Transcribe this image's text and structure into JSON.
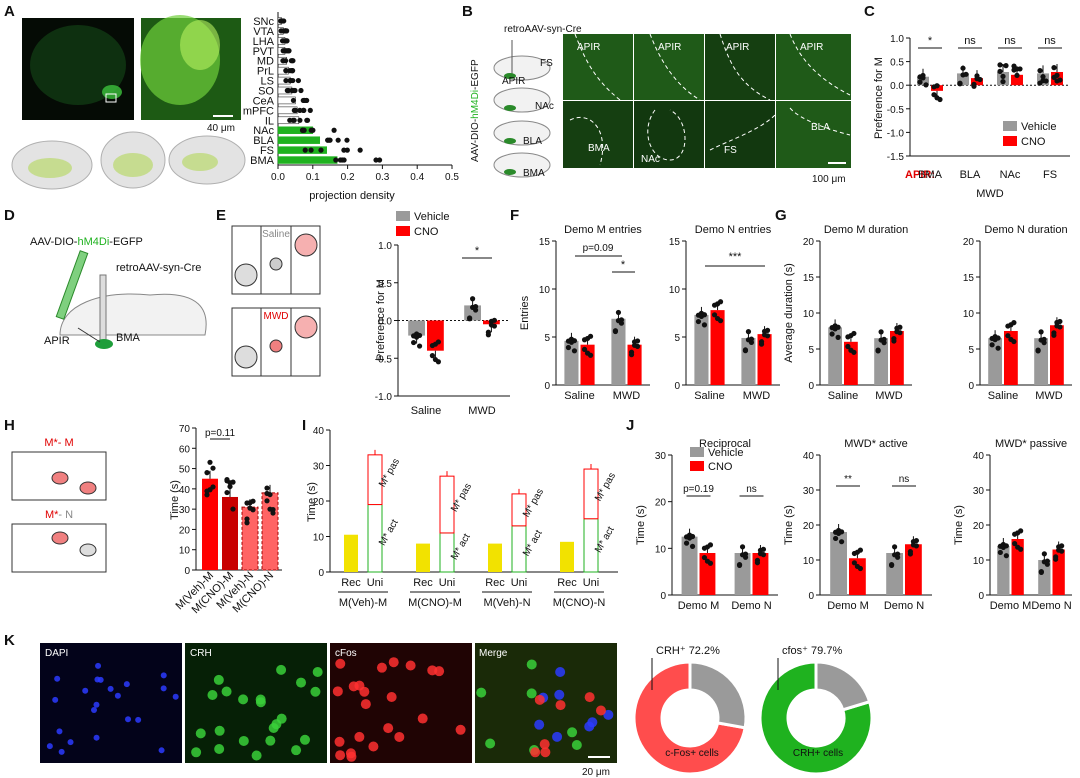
{
  "panel_labels": [
    "A",
    "B",
    "C",
    "D",
    "E",
    "F",
    "G",
    "H",
    "I",
    "J",
    "K"
  ],
  "colors": {
    "vehicle": "#9a9a9a",
    "cno": "#ff0000",
    "green": "#1fb21f",
    "yellow": "#f2e200",
    "dark_green": "#0d2a0d"
  },
  "A": {
    "scale_label": "40 μm",
    "chart_data": {
      "type": "bar",
      "orientation": "horizontal",
      "categories": [
        "SNc",
        "VTA",
        "LHA",
        "PVT",
        "MD",
        "PrL",
        "LS",
        "SO",
        "CeA",
        "mPFC",
        "IL",
        "NAc",
        "BLA",
        "FS",
        "BMA"
      ],
      "values": [
        0.01,
        0.015,
        0.02,
        0.02,
        0.025,
        0.03,
        0.035,
        0.04,
        0.05,
        0.055,
        0.06,
        0.1,
        0.12,
        0.14,
        0.17
      ],
      "xlabel": "projection density",
      "xticks": [
        "0.0",
        "0.1",
        "0.2",
        "0.3",
        "0.4",
        "0.5"
      ],
      "xlim": [
        0,
        0.5
      ]
    }
  },
  "B": {
    "virus_top": "retroAAV-syn-Cre",
    "virus_side_pre": "AAV-DIO-",
    "virus_side_mid": "hM4Di",
    "virus_side_post": "-EGFP",
    "schematic_labels": [
      "FS",
      "APIR",
      "NAc",
      "BLA",
      "BMA"
    ],
    "image_labels_top": [
      "APIR",
      "APIR",
      "APIR",
      "APIR"
    ],
    "image_labels_bottom": [
      "BMA",
      "NAc",
      "FS",
      "BLA"
    ],
    "scale_label": "100 μm"
  },
  "C": {
    "chart_data": {
      "type": "bar",
      "categories": [
        "BMA",
        "BLA",
        "NAc",
        "FS"
      ],
      "series": [
        {
          "name": "Vehicle",
          "values": [
            0.18,
            0.25,
            0.28,
            0.25
          ]
        },
        {
          "name": "CNO",
          "values": [
            -0.12,
            0.15,
            0.22,
            0.28
          ]
        }
      ],
      "ylabel": "Preference for M",
      "ylim": [
        -1.5,
        1.0
      ],
      "yticks": [
        "1.0",
        "0.5",
        "0.0",
        "-0.5",
        "-1.0",
        "-1.5"
      ],
      "significance": [
        "*",
        "ns",
        "ns",
        "ns"
      ],
      "xprefix": "APIR:",
      "xgroup": "MWD"
    }
  },
  "D": {
    "virus1_pre": "AAV-DIO-",
    "virus1_mid": "hM4Di",
    "virus1_post": "-EGFP",
    "virus2": "retroAAV-syn-Cre",
    "region1": "APIR",
    "region2": "BMA"
  },
  "E": {
    "box_label_1": "Saline",
    "box_label_2": "MWD",
    "legend": [
      "Vehicle",
      "CNO"
    ],
    "chart_data": {
      "type": "bar",
      "categories": [
        "Saline",
        "MWD"
      ],
      "series": [
        {
          "name": "Vehicle",
          "values": [
            -0.2,
            0.2
          ]
        },
        {
          "name": "CNO",
          "values": [
            -0.4,
            -0.05
          ]
        }
      ],
      "ylabel": "Preference for M",
      "ylim": [
        -1.0,
        1.0
      ],
      "yticks": [
        "1.0",
        "0.5",
        "0.0",
        "-0.5",
        "-1.0"
      ],
      "significance": "*"
    }
  },
  "F": {
    "chart_data": [
      {
        "type": "bar",
        "title": "Demo M entries",
        "categories": [
          "Saline",
          "MWD"
        ],
        "series": [
          {
            "name": "Vehicle",
            "values": [
              4.6,
              6.9
            ]
          },
          {
            "name": "CNO",
            "values": [
              4.2,
              4.2
            ]
          }
        ],
        "ylabel": "Entries",
        "ylim": [
          0,
          15
        ],
        "yticks": [
          "15",
          "10",
          "5",
          "0"
        ],
        "annotations": [
          "p=0.09",
          "*"
        ]
      },
      {
        "type": "bar",
        "title": "Demo N entries",
        "categories": [
          "Saline",
          "MWD"
        ],
        "series": [
          {
            "name": "Vehicle",
            "values": [
              7.3,
              4.9
            ]
          },
          {
            "name": "CNO",
            "values": [
              7.8,
              5.3
            ]
          }
        ],
        "ylim": [
          0,
          15
        ],
        "yticks": [
          "15",
          "10",
          "5",
          "0"
        ],
        "annotations": [
          "***"
        ]
      }
    ]
  },
  "G": {
    "chart_data": [
      {
        "type": "bar",
        "title": "Demo M duration",
        "categories": [
          "Saline",
          "MWD"
        ],
        "series": [
          {
            "name": "Vehicle",
            "values": [
              8.0,
              6.5
            ]
          },
          {
            "name": "CNO",
            "values": [
              6.0,
              7.5
            ]
          }
        ],
        "ylabel": "Average duration (s)",
        "ylim": [
          0,
          20
        ],
        "yticks": [
          "20",
          "15",
          "10",
          "5",
          "0"
        ]
      },
      {
        "type": "bar",
        "title": "Demo N duration",
        "categories": [
          "Saline",
          "MWD"
        ],
        "series": [
          {
            "name": "Vehicle",
            "values": [
              6.5,
              6.5
            ]
          },
          {
            "name": "CNO",
            "values": [
              7.5,
              8.3
            ]
          }
        ],
        "ylim": [
          0,
          20
        ],
        "yticks": [
          "20",
          "15",
          "10",
          "5",
          "0"
        ]
      }
    ]
  },
  "H": {
    "box1_pre": "M*",
    "box1_post": "- M",
    "box2_pre": "M*",
    "box2_post": "- N",
    "chart_data": {
      "type": "bar",
      "categories": [
        "M(Veh)-M",
        "M(CNO)-M",
        "M(Veh)-N",
        "M(CNO)-N"
      ],
      "values": [
        45,
        36,
        31,
        38
      ],
      "ylabel": "Time (s)",
      "ylim": [
        0,
        70
      ],
      "yticks": [
        "70",
        "60",
        "50",
        "40",
        "30",
        "20",
        "10",
        "0"
      ],
      "annotation": "p=0.11"
    }
  },
  "I": {
    "chart_data": {
      "type": "bar",
      "groups": [
        "M(Veh)-M",
        "M(CNO)-M",
        "M(Veh)-N",
        "M(CNO)-N"
      ],
      "subcategories": [
        "Rec",
        "Uni"
      ],
      "rec_values": [
        10.5,
        8,
        8,
        8.5
      ],
      "uni_act_values": [
        19,
        11,
        13,
        15
      ],
      "uni_total_values": [
        33,
        27,
        22,
        29
      ],
      "segment_labels": [
        "M* act",
        "M* pas"
      ],
      "ylabel": "Time (s)",
      "ylim": [
        0,
        40
      ],
      "yticks": [
        "40",
        "30",
        "20",
        "10",
        "0"
      ]
    }
  },
  "J": {
    "legend": [
      "Vehicle",
      "CNO"
    ],
    "chart_data": [
      {
        "type": "bar",
        "title": "Reciprocal",
        "categories": [
          "Demo M",
          "Demo N"
        ],
        "series": [
          {
            "name": "Vehicle",
            "values": [
              12.5,
              9
            ]
          },
          {
            "name": "CNO",
            "values": [
              9,
              9
            ]
          }
        ],
        "ylabel": "Time (s)",
        "ylim": [
          0,
          30
        ],
        "yticks": [
          "30",
          "20",
          "10",
          "0"
        ],
        "significance": [
          "p=0.19",
          "ns"
        ]
      },
      {
        "type": "bar",
        "title": "MWD* active",
        "categories": [
          "Demo M",
          "Demo N"
        ],
        "series": [
          {
            "name": "Vehicle",
            "values": [
              18,
              12
            ]
          },
          {
            "name": "CNO",
            "values": [
              10.5,
              14.5
            ]
          }
        ],
        "ylabel": "Time (s)",
        "ylim": [
          0,
          40
        ],
        "yticks": [
          "40",
          "30",
          "20",
          "10",
          "0"
        ],
        "significance": [
          "**",
          "ns"
        ]
      },
      {
        "type": "bar",
        "title": "MWD* passive",
        "categories": [
          "Demo M",
          "Demo N"
        ],
        "series": [
          {
            "name": "Vehicle",
            "values": [
              14,
              10
            ]
          },
          {
            "name": "CNO",
            "values": [
              16,
              13
            ]
          }
        ],
        "ylabel": "Time (s)",
        "ylim": [
          0,
          40
        ],
        "yticks": [
          "40",
          "30",
          "20",
          "10",
          "0"
        ]
      }
    ]
  },
  "K": {
    "image_labels": [
      "DAPI",
      "CRH",
      "cFos",
      "Merge"
    ],
    "scale_label": "20 μm",
    "chart_data": [
      {
        "type": "pie",
        "title": "CRH⁺ 72.2%",
        "slice_label": "c-Fos+ cells",
        "values": [
          72.2,
          27.8
        ]
      },
      {
        "type": "pie",
        "title": "cfos⁺ 79.7%",
        "slice_label": "CRH+ cells",
        "values": [
          79.7,
          20.3
        ]
      }
    ]
  }
}
